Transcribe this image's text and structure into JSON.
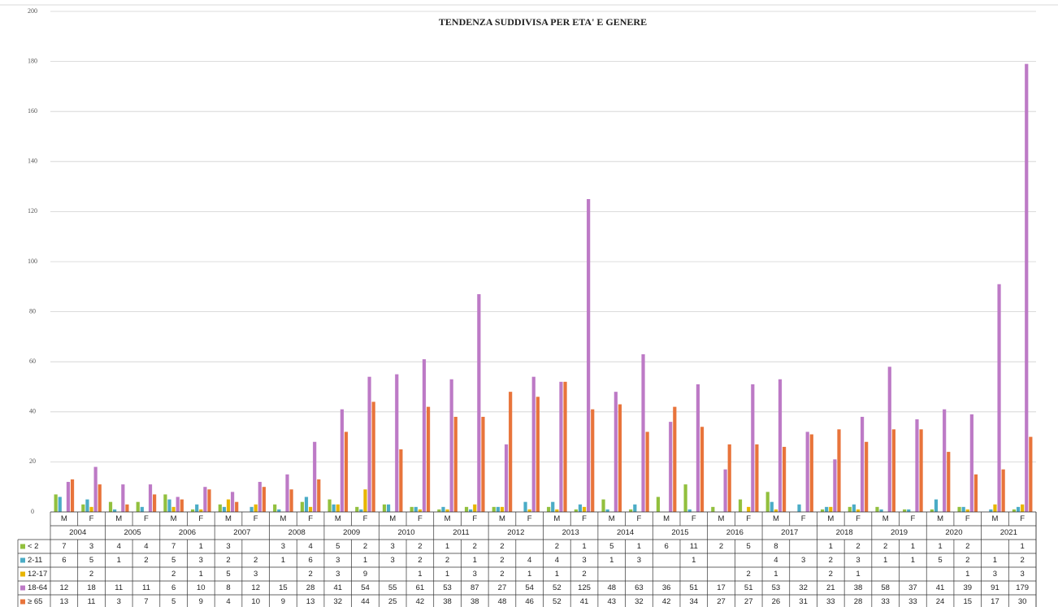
{
  "chart_data": {
    "type": "bar",
    "title": "TENDENZA SUDDIVISA PER ETA' E GENERE",
    "groups": [
      "2004",
      "2005",
      "2006",
      "2007",
      "2008",
      "2009",
      "2010",
      "2011",
      "2012",
      "2013",
      "2014",
      "2015",
      "2016",
      "2017",
      "2018",
      "2019",
      "2020",
      "2021"
    ],
    "categories": [
      "M",
      "F",
      "M",
      "F",
      "M",
      "F",
      "M",
      "F",
      "M",
      "F",
      "M",
      "F",
      "M",
      "F",
      "M",
      "F",
      "M",
      "F",
      "M",
      "F",
      "M",
      "F",
      "M",
      "F",
      "M",
      "F",
      "M",
      "F",
      "M",
      "F",
      "M",
      "F",
      "M",
      "F",
      "M",
      "F"
    ],
    "series": [
      {
        "name": "< 2",
        "color": "#92c03e",
        "values": [
          7,
          3,
          4,
          4,
          7,
          1,
          3,
          null,
          3,
          4,
          5,
          2,
          3,
          2,
          1,
          2,
          2,
          null,
          2,
          1,
          5,
          1,
          6,
          11,
          2,
          5,
          8,
          null,
          1,
          2,
          2,
          1,
          1,
          2,
          null,
          1
        ]
      },
      {
        "name": "2-11",
        "color": "#4bacc6",
        "values": [
          6,
          5,
          1,
          2,
          5,
          3,
          2,
          2,
          1,
          6,
          3,
          1,
          3,
          2,
          2,
          1,
          2,
          4,
          4,
          3,
          1,
          3,
          null,
          1,
          null,
          null,
          4,
          3,
          2,
          3,
          1,
          1,
          5,
          2,
          1,
          2
        ]
      },
      {
        "name": "12-17",
        "color": "#e8b500",
        "values": [
          null,
          2,
          null,
          null,
          2,
          1,
          5,
          3,
          null,
          2,
          3,
          9,
          null,
          1,
          1,
          3,
          2,
          1,
          1,
          2,
          null,
          null,
          null,
          null,
          null,
          2,
          1,
          null,
          2,
          1,
          null,
          null,
          null,
          1,
          3,
          3
        ]
      },
      {
        "name": "18-64",
        "color": "#bd7ac6",
        "values": [
          12,
          18,
          11,
          11,
          6,
          10,
          8,
          12,
          15,
          28,
          41,
          54,
          55,
          61,
          53,
          87,
          27,
          54,
          52,
          125,
          48,
          63,
          36,
          51,
          17,
          51,
          53,
          32,
          21,
          38,
          58,
          37,
          41,
          39,
          91,
          179
        ]
      },
      {
        "name": "≥ 65",
        "color": "#e8743b",
        "values": [
          13,
          11,
          3,
          7,
          5,
          9,
          4,
          10,
          9,
          13,
          32,
          44,
          25,
          42,
          38,
          38,
          48,
          46,
          52,
          41,
          43,
          32,
          42,
          34,
          27,
          27,
          26,
          31,
          33,
          28,
          33,
          33,
          24,
          15,
          17,
          30
        ]
      }
    ],
    "ylim": [
      0,
      200
    ],
    "yticks": [
      0,
      20,
      40,
      60,
      80,
      100,
      120,
      140,
      160,
      180,
      200
    ],
    "grid": true
  }
}
